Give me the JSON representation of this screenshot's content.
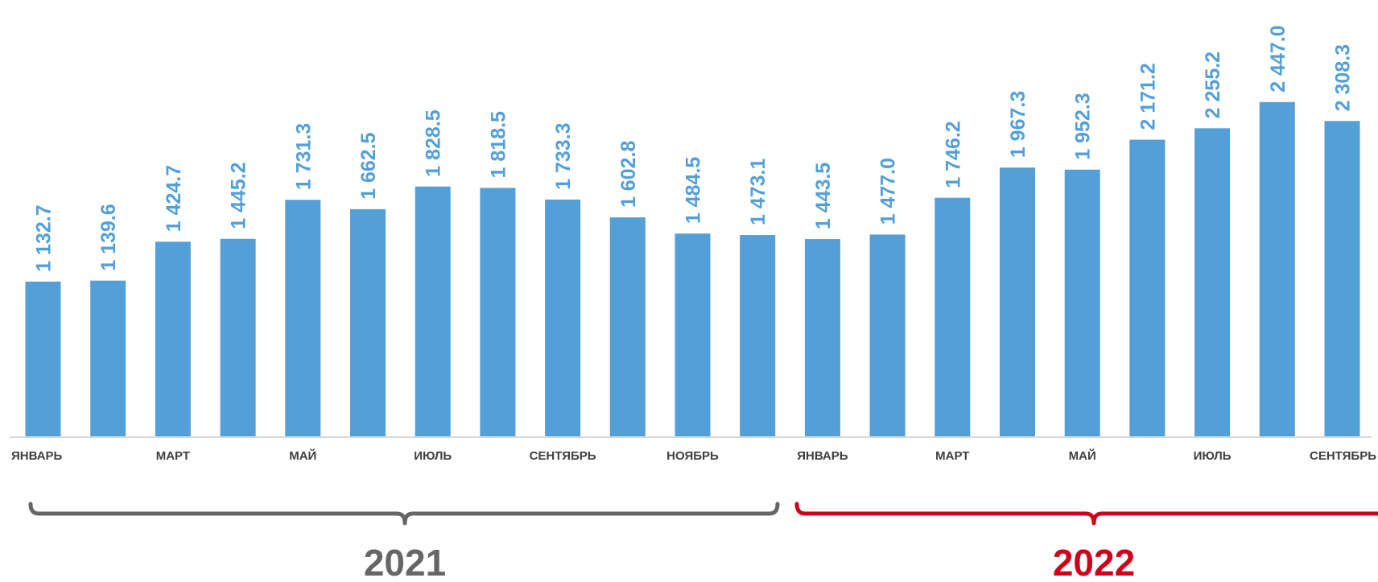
{
  "chart_data": {
    "type": "bar",
    "title": "",
    "xlabel": "",
    "ylabel": "",
    "ylim": [
      0,
      2700
    ],
    "grid": false,
    "legend": "none",
    "bar_color": "#539fd8",
    "value_label_color": "#539fd8",
    "axis_color": "#d9d9d9",
    "categories": [
      "2021-01",
      "2021-02",
      "2021-03",
      "2021-04",
      "2021-05",
      "2021-06",
      "2021-07",
      "2021-08",
      "2021-09",
      "2021-10",
      "2021-11",
      "2021-12",
      "2022-01",
      "2022-02",
      "2022-03",
      "2022-04",
      "2022-05",
      "2022-06",
      "2022-07",
      "2022-08",
      "2022-09"
    ],
    "values": [
      1132.7,
      1139.6,
      1424.7,
      1445.2,
      1731.3,
      1662.5,
      1828.5,
      1818.5,
      1733.3,
      1602.8,
      1484.5,
      1473.1,
      1443.5,
      1477.0,
      1746.2,
      1967.3,
      1952.3,
      2171.2,
      2255.2,
      2447.0,
      2308.3
    ],
    "value_labels": [
      "1 132.7",
      "1 139.6",
      "1 424.7",
      "1 445.2",
      "1 731.3",
      "1 662.5",
      "1 828.5",
      "1 818.5",
      "1 733.3",
      "1 602.8",
      "1 484.5",
      "1 473.1",
      "1 443.5",
      "1 477.0",
      "1 746.2",
      "1 967.3",
      "1 952.3",
      "2 171.2",
      "2 255.2",
      "2 447.0",
      "2 308.3"
    ],
    "tick_labels": [
      {
        "index": 0,
        "text": "ЯНВАРЬ"
      },
      {
        "index": 2,
        "text": "МАРТ"
      },
      {
        "index": 4,
        "text": "МАЙ"
      },
      {
        "index": 6,
        "text": "ИЮЛЬ"
      },
      {
        "index": 8,
        "text": "СЕНТЯБРЬ"
      },
      {
        "index": 10,
        "text": "НОЯБРЬ"
      },
      {
        "index": 12,
        "text": "ЯНВАРЬ"
      },
      {
        "index": 14,
        "text": "МАРТ"
      },
      {
        "index": 16,
        "text": "МАЙ"
      },
      {
        "index": 18,
        "text": "ИЮЛЬ"
      },
      {
        "index": 20,
        "text": "СЕНТЯБРЬ"
      }
    ],
    "groups": [
      {
        "label": "2021",
        "start_index": 0,
        "end_index": 11,
        "color": "#666666"
      },
      {
        "label": "2022",
        "start_index": 12,
        "end_index": 20,
        "color": "#d0021b"
      }
    ]
  }
}
